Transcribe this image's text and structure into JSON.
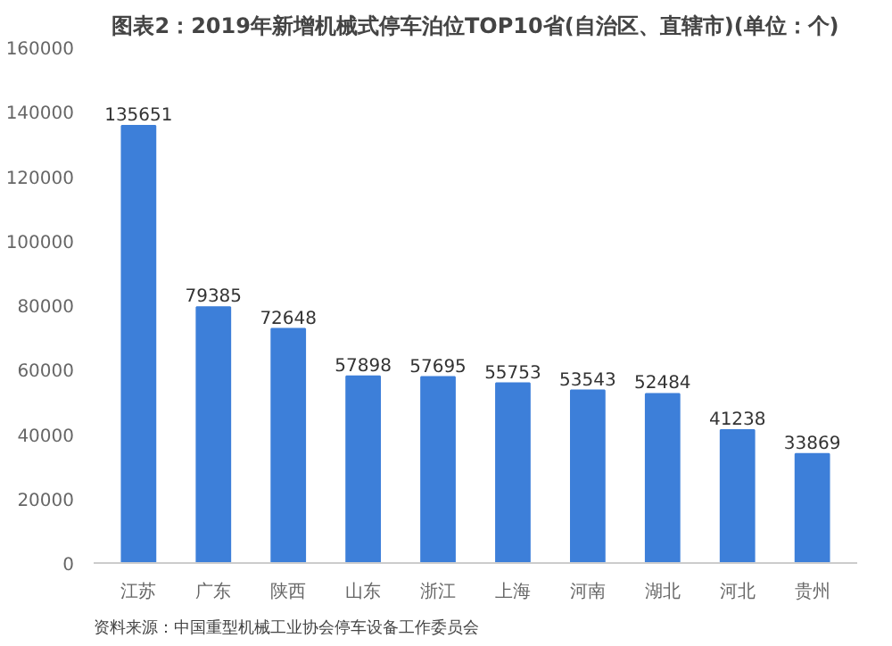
{
  "chart_data": {
    "type": "bar",
    "title": "图表2：2019年新增机械式停车泊位TOP10省(自治区、直辖市)(单位：个)",
    "categories": [
      "江苏",
      "广东",
      "陕西",
      "山东",
      "浙江",
      "上海",
      "河南",
      "湖北",
      "河北",
      "贵州"
    ],
    "values": [
      135651,
      79385,
      72648,
      57898,
      57695,
      55753,
      53543,
      52484,
      41238,
      33869
    ],
    "color": "#3d7fd9",
    "data_labels": true,
    "grid": false,
    "ylim": [
      0,
      160000
    ],
    "yticks": [
      0,
      20000,
      40000,
      60000,
      80000,
      100000,
      120000,
      140000,
      160000
    ],
    "annotations": [
      "资料来源：中国重型机械工业协会停车设备工作委员会"
    ]
  }
}
